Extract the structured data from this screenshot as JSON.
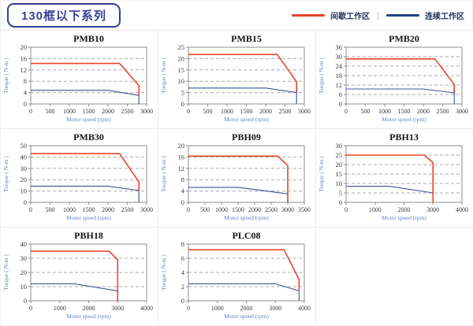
{
  "header": {
    "title": "130框以下系列",
    "legend_separator": "|",
    "legend": [
      {
        "label": "间歇工作区",
        "color": "#e8432c"
      },
      {
        "label": "连续工作区",
        "color": "#20407f"
      }
    ]
  },
  "axis": {
    "xlabel": "Motor speed (rpm)",
    "ylabel": "Torque ( N-m )"
  },
  "colors": {
    "intermittent_line": "#e8432c",
    "continuous_line": "#3c5494",
    "grid_dash": "#a9a9a9",
    "frame": "#8d8d8d",
    "tick_text": "#3a3a3a",
    "axis_label_text": "#6084c4",
    "chart_title_text": "#141414",
    "header_accent": "#383f96"
  },
  "chart_data": [
    {
      "type": "line",
      "title": "PMB10",
      "xlabel": "Motor speed (rpm)",
      "ylabel": "Torque ( N-m )",
      "xlim": [
        0,
        3000
      ],
      "xstep": 500,
      "ylim": [
        0,
        20
      ],
      "ystep": 4,
      "grid": "dashed-horizontal",
      "series": [
        {
          "name": "间歇工作区",
          "color": "#e8432c",
          "points": [
            [
              0,
              14.3
            ],
            [
              2300,
              14.3
            ],
            [
              2800,
              6.5
            ],
            [
              2800,
              3
            ]
          ]
        },
        {
          "name": "连续工作区",
          "color": "#3c5494",
          "points": [
            [
              0,
              4.8
            ],
            [
              2000,
              4.8
            ],
            [
              2800,
              3
            ],
            [
              2800,
              0
            ]
          ]
        }
      ]
    },
    {
      "type": "line",
      "title": "PMB15",
      "xlabel": "Motor speed (rpm)",
      "ylabel": "Torque ( N-m )",
      "xlim": [
        0,
        3000
      ],
      "xstep": 500,
      "ylim": [
        0,
        25
      ],
      "ystep": 5,
      "grid": "dashed-horizontal",
      "series": [
        {
          "name": "间歇工作区",
          "color": "#e8432c",
          "points": [
            [
              0,
              21.8
            ],
            [
              2300,
              21.8
            ],
            [
              2800,
              9.8
            ],
            [
              2800,
              5
            ]
          ]
        },
        {
          "name": "连续工作区",
          "color": "#3c5494",
          "points": [
            [
              0,
              7
            ],
            [
              2000,
              7
            ],
            [
              2800,
              5
            ],
            [
              2800,
              0
            ]
          ]
        }
      ]
    },
    {
      "type": "line",
      "title": "PMB20",
      "xlabel": "Motor speed (rpm)",
      "ylabel": "Torque ( N-m )",
      "xlim": [
        0,
        3000
      ],
      "xstep": 500,
      "ylim": [
        0,
        36
      ],
      "ystep": 6,
      "grid": "dashed-horizontal",
      "series": [
        {
          "name": "间歇工作区",
          "color": "#e8432c",
          "points": [
            [
              0,
              28.6
            ],
            [
              2300,
              28.6
            ],
            [
              2800,
              12.4
            ],
            [
              2800,
              7
            ]
          ]
        },
        {
          "name": "连续工作区",
          "color": "#3c5494",
          "points": [
            [
              0,
              9.5
            ],
            [
              2000,
              9.5
            ],
            [
              2800,
              7
            ],
            [
              2800,
              0
            ]
          ]
        }
      ]
    },
    {
      "type": "line",
      "title": "PMB30",
      "xlabel": "Motor speed (rpm)",
      "ylabel": "Torque ( N-m )",
      "xlim": [
        0,
        3000
      ],
      "xstep": 500,
      "ylim": [
        0,
        50
      ],
      "ystep": 10,
      "grid": "dashed-horizontal",
      "series": [
        {
          "name": "间歇工作区",
          "color": "#e8432c",
          "points": [
            [
              0,
              43
            ],
            [
              2300,
              43
            ],
            [
              2800,
              18
            ],
            [
              2800,
              10.5
            ]
          ]
        },
        {
          "name": "连续工作区",
          "color": "#3c5494",
          "points": [
            [
              0,
              14.3
            ],
            [
              2000,
              14.3
            ],
            [
              2800,
              10.5
            ],
            [
              2800,
              0
            ]
          ]
        }
      ]
    },
    {
      "type": "line",
      "title": "PBH09",
      "xlabel": "Motor speed (rpm)",
      "ylabel": "Torque ( N-m )",
      "xlim": [
        0,
        3500
      ],
      "xstep": 500,
      "ylim": [
        0,
        20
      ],
      "ystep": 4,
      "grid": "dashed-horizontal",
      "series": [
        {
          "name": "间歇工作区",
          "color": "#e8432c",
          "points": [
            [
              0,
              16.3
            ],
            [
              2700,
              16.3
            ],
            [
              3000,
              13
            ],
            [
              3000,
              0
            ]
          ]
        },
        {
          "name": "连续工作区",
          "color": "#3c5494",
          "points": [
            [
              0,
              5.3
            ],
            [
              1500,
              5.3
            ],
            [
              3000,
              3
            ],
            [
              3000,
              0
            ]
          ]
        }
      ]
    },
    {
      "type": "line",
      "title": "PBH13",
      "xlabel": "Motor speed (rpm)",
      "ylabel": "Torque ( N-m )",
      "xlim": [
        0,
        4000
      ],
      "xstep": 1000,
      "ylim": [
        0,
        30
      ],
      "ystep": 5,
      "grid": "dashed-horizontal",
      "series": [
        {
          "name": "间歇工作区",
          "color": "#e8432c",
          "points": [
            [
              0,
              25
            ],
            [
              2700,
              25
            ],
            [
              3000,
              21
            ],
            [
              3000,
              0
            ]
          ]
        },
        {
          "name": "连续工作区",
          "color": "#3c5494",
          "points": [
            [
              0,
              8.5
            ],
            [
              1500,
              8.5
            ],
            [
              3000,
              5
            ],
            [
              3000,
              0
            ]
          ]
        }
      ]
    },
    {
      "type": "line",
      "title": "PBH18",
      "xlabel": "Motor speed (rpm)",
      "ylabel": "Torque ( N-m )",
      "xlim": [
        0,
        4000
      ],
      "xstep": 1000,
      "ylim": [
        0,
        40
      ],
      "ystep": 10,
      "grid": "dashed-horizontal",
      "series": [
        {
          "name": "间歇工作区",
          "color": "#e8432c",
          "points": [
            [
              0,
              35
            ],
            [
              2700,
              35
            ],
            [
              3000,
              29
            ],
            [
              3000,
              0
            ]
          ]
        },
        {
          "name": "连续工作区",
          "color": "#3c5494",
          "points": [
            [
              0,
              12
            ],
            [
              1500,
              12
            ],
            [
              3000,
              7
            ],
            [
              3000,
              0
            ]
          ]
        }
      ]
    },
    {
      "type": "line",
      "title": "PLC08",
      "xlabel": "Motor speed (rpm)",
      "ylabel": "Torque ( N-m )",
      "xlim": [
        0,
        4000
      ],
      "xstep": 1000,
      "ylim": [
        0,
        8
      ],
      "ystep": 2,
      "grid": "dashed-horizontal",
      "series": [
        {
          "name": "间歇工作区",
          "color": "#e8432c",
          "points": [
            [
              0,
              7.2
            ],
            [
              3300,
              7.2
            ],
            [
              3820,
              3
            ],
            [
              3820,
              1.5
            ]
          ]
        },
        {
          "name": "连续工作区",
          "color": "#3c5494",
          "points": [
            [
              0,
              2.4
            ],
            [
              3000,
              2.4
            ],
            [
              3820,
              1.4
            ],
            [
              3820,
              0
            ]
          ]
        }
      ]
    }
  ]
}
